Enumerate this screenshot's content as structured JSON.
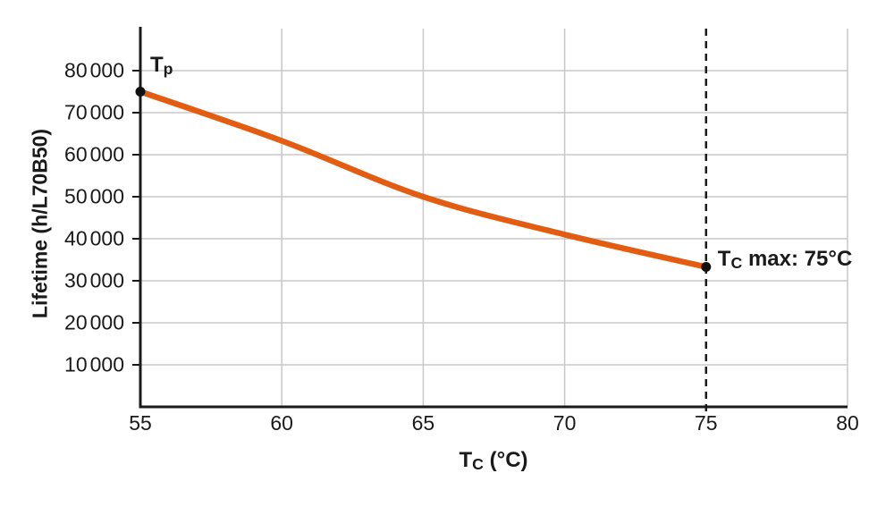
{
  "chart_data": {
    "type": "line",
    "title": "",
    "xlabel": {
      "text": "T",
      "sub": "C",
      "rest": " (°C)"
    },
    "ylabel": "Lifetime (h/L70B50)",
    "xlim": [
      55,
      80
    ],
    "ylim": [
      0,
      90000
    ],
    "x_ticks": [
      55,
      60,
      65,
      70,
      75,
      80
    ],
    "y_ticks": [
      10000,
      20000,
      30000,
      40000,
      50000,
      60000,
      70000,
      80000
    ],
    "grid": true,
    "legend": "none",
    "series": [
      {
        "name": "lifetime-vs-tc",
        "color": "#e25c12",
        "x": [
          55,
          60,
          65,
          70,
          75
        ],
        "y": [
          75000,
          63300,
          50000,
          41000,
          33300
        ]
      }
    ],
    "markers": [
      {
        "x": 55,
        "y": 75000
      },
      {
        "x": 75,
        "y": 33300
      }
    ],
    "reference_line": {
      "x": 75,
      "style": "dashed",
      "color": "#1a1a1a"
    },
    "annotations": [
      {
        "id": "tp",
        "text": "T",
        "sub": "p",
        "rest": "",
        "x": 55,
        "y": 75000
      },
      {
        "id": "tcmax",
        "text": "T",
        "sub": "C",
        "rest": " max: 75°C",
        "x": 75,
        "y": 33300
      }
    ],
    "colors": {
      "grid": "#c8c8c8",
      "axis": "#1a1a1a",
      "line": "#e25c12",
      "marker": "#111111",
      "background": "#ffffff"
    }
  }
}
